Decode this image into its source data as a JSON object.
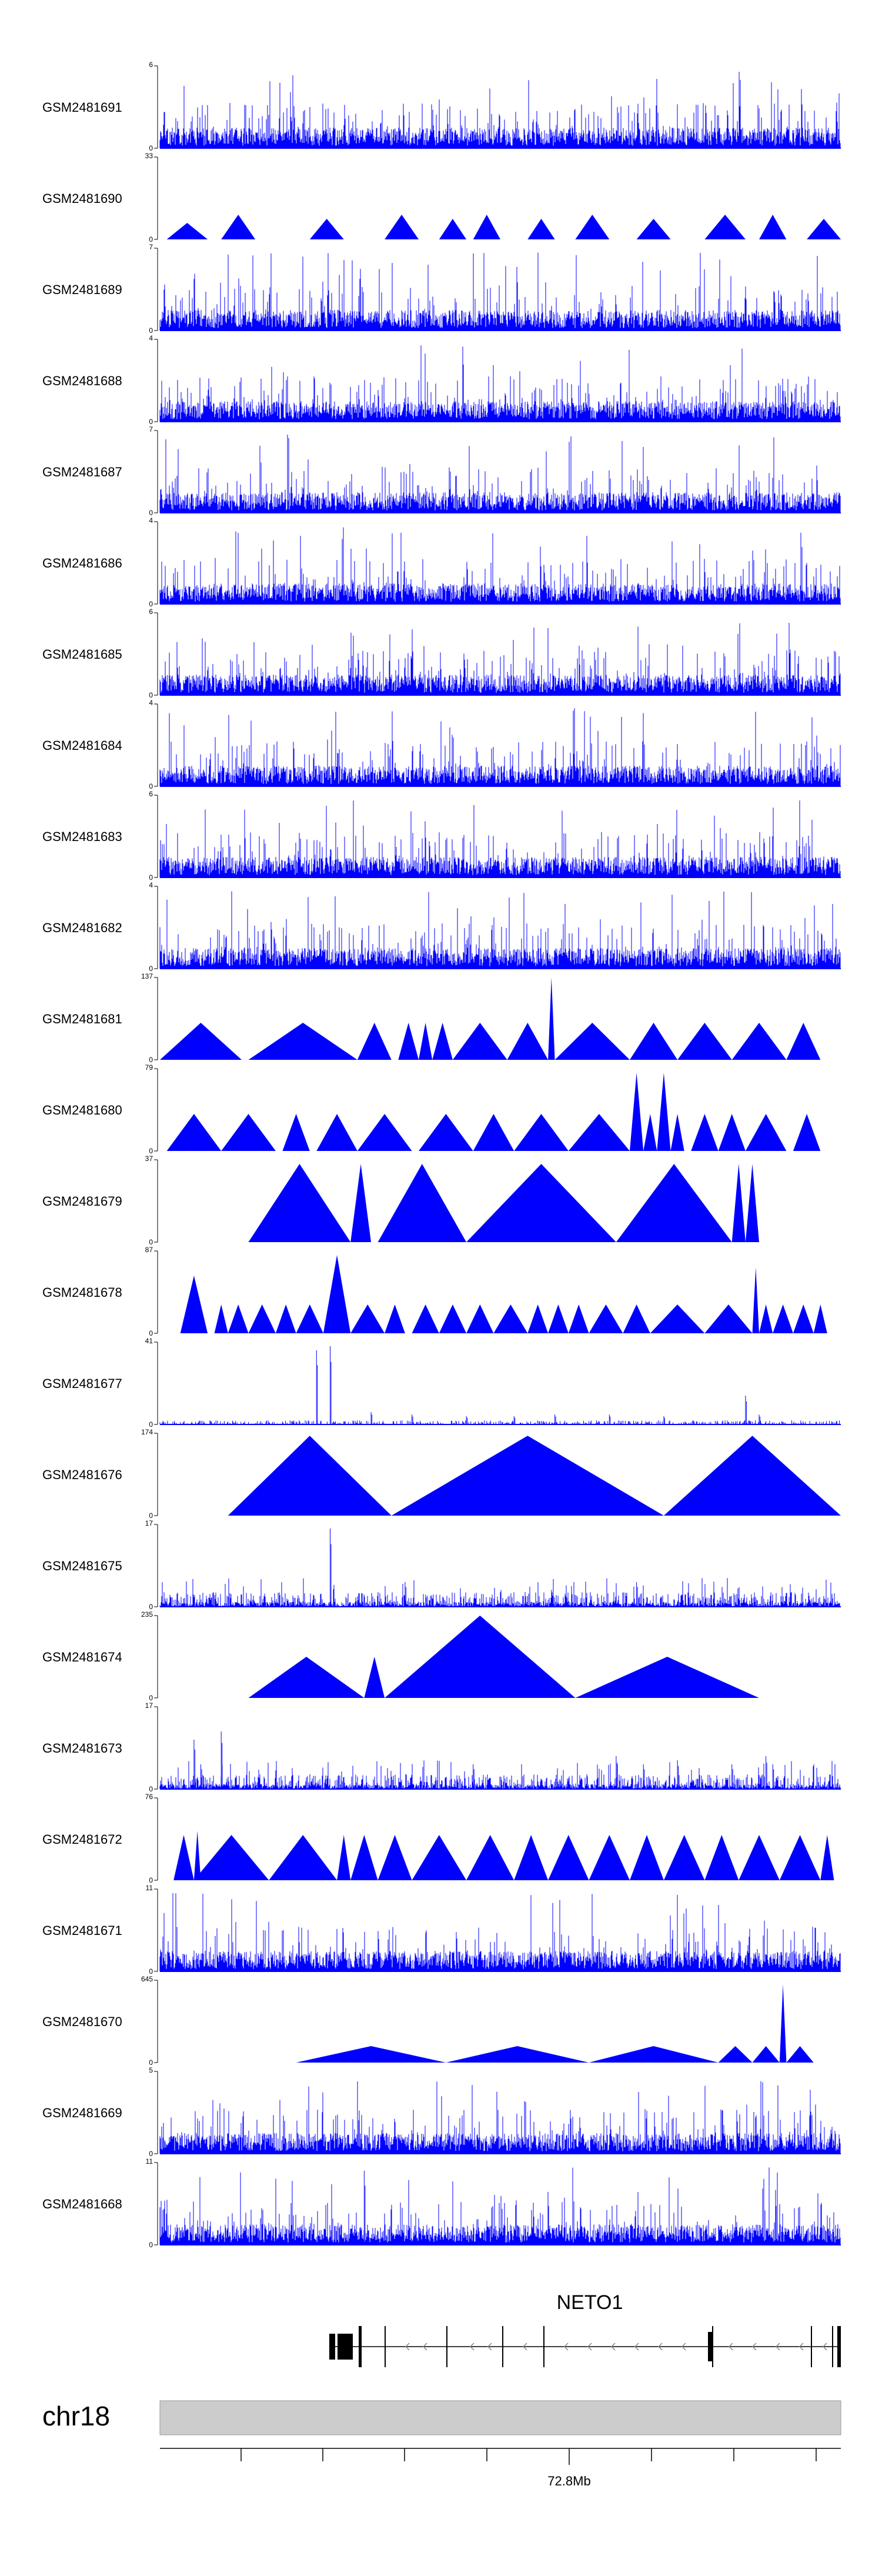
{
  "colors": {
    "signal": "#0000ff",
    "ideogram": "#cccccc",
    "gene": "#000000",
    "axis": "#000000"
  },
  "chart_data": {
    "type": "area",
    "genomic_region": {
      "chromosome": "chr18",
      "position_label": "72.8Mb",
      "gene": "NETO1"
    },
    "tracks": [
      {
        "name": "GSM2481691",
        "ymin": 0,
        "ymax": 6,
        "style": "dense"
      },
      {
        "name": "GSM2481690",
        "ymin": 0,
        "ymax": 33,
        "style": "triangles",
        "seed": 0.11,
        "triangles": [
          [
            1,
            7,
            0.2
          ],
          [
            9,
            14,
            0.3
          ],
          [
            22,
            27,
            0.25
          ],
          [
            33,
            38,
            0.3
          ],
          [
            41,
            45,
            0.25
          ],
          [
            46,
            50,
            0.3
          ],
          [
            54,
            58,
            0.25
          ],
          [
            61,
            66,
            0.3
          ],
          [
            70,
            75,
            0.25
          ],
          [
            80,
            86,
            0.3
          ],
          [
            88,
            92,
            0.3
          ],
          [
            95,
            100,
            0.25
          ]
        ]
      },
      {
        "name": "GSM2481689",
        "ymin": 0,
        "ymax": 7,
        "style": "dense"
      },
      {
        "name": "GSM2481688",
        "ymin": 0,
        "ymax": 4,
        "style": "dense"
      },
      {
        "name": "GSM2481687",
        "ymin": 0,
        "ymax": 7,
        "style": "dense"
      },
      {
        "name": "GSM2481686",
        "ymin": 0,
        "ymax": 4,
        "style": "dense"
      },
      {
        "name": "GSM2481685",
        "ymin": 0,
        "ymax": 6,
        "style": "dense"
      },
      {
        "name": "GSM2481684",
        "ymin": 0,
        "ymax": 4,
        "style": "dense"
      },
      {
        "name": "GSM2481683",
        "ymin": 0,
        "ymax": 6,
        "style": "dense"
      },
      {
        "name": "GSM2481682",
        "ymin": 0,
        "ymax": 4,
        "style": "dense"
      },
      {
        "name": "GSM2481681",
        "ymin": 0,
        "ymax": 137,
        "style": "triangles",
        "triangles": [
          [
            0,
            12,
            0.45
          ],
          [
            13,
            29,
            0.45
          ],
          [
            29,
            34,
            0.45
          ],
          [
            35,
            38,
            0.45
          ],
          [
            38,
            40,
            0.45
          ],
          [
            40,
            43,
            0.45
          ],
          [
            43,
            51,
            0.45
          ],
          [
            51,
            57,
            0.45
          ],
          [
            57,
            58,
            1.0
          ],
          [
            58,
            69,
            0.45
          ],
          [
            69,
            76,
            0.45
          ],
          [
            76,
            84,
            0.45
          ],
          [
            84,
            92,
            0.45
          ],
          [
            92,
            97,
            0.45
          ]
        ]
      },
      {
        "name": "GSM2481680",
        "ymin": 0,
        "ymax": 79,
        "style": "triangles",
        "triangles": [
          [
            1,
            9,
            0.45
          ],
          [
            9,
            17,
            0.45
          ],
          [
            18,
            22,
            0.45
          ],
          [
            23,
            29,
            0.45
          ],
          [
            29,
            37,
            0.45
          ],
          [
            38,
            46,
            0.45
          ],
          [
            46,
            52,
            0.45
          ],
          [
            52,
            60,
            0.45
          ],
          [
            60,
            69,
            0.45
          ],
          [
            69,
            71,
            0.95
          ],
          [
            71,
            73,
            0.45
          ],
          [
            73,
            75,
            0.95
          ],
          [
            75,
            77,
            0.45
          ],
          [
            78,
            82,
            0.45
          ],
          [
            82,
            86,
            0.45
          ],
          [
            86,
            92,
            0.45
          ],
          [
            93,
            97,
            0.45
          ]
        ]
      },
      {
        "name": "GSM2481679",
        "ymin": 0,
        "ymax": 37,
        "style": "triangles",
        "triangles": [
          [
            13,
            28,
            0.95
          ],
          [
            28,
            31,
            0.95
          ],
          [
            32,
            45,
            0.95
          ],
          [
            45,
            67,
            0.95
          ],
          [
            67,
            84,
            0.95
          ],
          [
            84,
            86,
            0.95
          ],
          [
            86,
            88,
            0.95
          ]
        ]
      },
      {
        "name": "GSM2481678",
        "ymin": 0,
        "ymax": 87,
        "style": "triangles",
        "triangles": [
          [
            3,
            7,
            0.7
          ],
          [
            8,
            10,
            0.35
          ],
          [
            10,
            13,
            0.35
          ],
          [
            13,
            17,
            0.35
          ],
          [
            17,
            20,
            0.35
          ],
          [
            20,
            24,
            0.35
          ],
          [
            24,
            28,
            0.95
          ],
          [
            28,
            33,
            0.35
          ],
          [
            33,
            36,
            0.35
          ],
          [
            37,
            41,
            0.35
          ],
          [
            41,
            45,
            0.35
          ],
          [
            45,
            49,
            0.35
          ],
          [
            49,
            54,
            0.35
          ],
          [
            54,
            57,
            0.35
          ],
          [
            57,
            60,
            0.35
          ],
          [
            60,
            63,
            0.35
          ],
          [
            63,
            68,
            0.35
          ],
          [
            68,
            72,
            0.35
          ],
          [
            72,
            80,
            0.35
          ],
          [
            80,
            87,
            0.35
          ],
          [
            87,
            88,
            0.8
          ],
          [
            88,
            90,
            0.35
          ],
          [
            90,
            93,
            0.35
          ],
          [
            93,
            96,
            0.35
          ],
          [
            96,
            98,
            0.35
          ]
        ]
      },
      {
        "name": "GSM2481677",
        "ymin": 0,
        "ymax": 41,
        "style": "sparse",
        "spikes": [
          [
            23,
            0.9
          ],
          [
            25,
            0.95
          ],
          [
            31,
            0.15
          ],
          [
            37,
            0.12
          ],
          [
            45,
            0.1
          ],
          [
            52,
            0.1
          ],
          [
            58,
            0.12
          ],
          [
            66,
            0.12
          ],
          [
            74,
            0.1
          ],
          [
            86,
            0.35
          ],
          [
            88,
            0.12
          ]
        ]
      },
      {
        "name": "GSM2481676",
        "ymin": 0,
        "ymax": 174,
        "style": "triangles",
        "triangles": [
          [
            10,
            34,
            0.97
          ],
          [
            34,
            74,
            0.97
          ],
          [
            74,
            100,
            0.97
          ]
        ]
      },
      {
        "name": "GSM2481675",
        "ymin": 0,
        "ymax": 17,
        "style": "spiky",
        "spikes": [
          [
            25,
            0.95
          ],
          [
            36,
            0.3
          ],
          [
            70,
            0.3
          ]
        ]
      },
      {
        "name": "GSM2481674",
        "ymin": 0,
        "ymax": 235,
        "style": "triangles",
        "triangles": [
          [
            13,
            30,
            0.5
          ],
          [
            30,
            33,
            0.5
          ],
          [
            33,
            61,
            1.0
          ],
          [
            61,
            88,
            0.5
          ]
        ]
      },
      {
        "name": "GSM2481673",
        "ymin": 0,
        "ymax": 17,
        "style": "spiky",
        "spikes": [
          [
            5,
            0.6
          ],
          [
            6,
            0.3
          ],
          [
            9,
            0.7
          ],
          [
            46,
            0.3
          ],
          [
            67,
            0.4
          ],
          [
            71,
            0.3
          ],
          [
            76,
            0.35
          ],
          [
            84,
            0.3
          ],
          [
            89,
            0.4
          ],
          [
            90,
            0.3
          ]
        ]
      },
      {
        "name": "GSM2481672",
        "ymin": 0,
        "ymax": 76,
        "style": "triangles",
        "triangles": [
          [
            2,
            5,
            0.55
          ],
          [
            5,
            16,
            0.55
          ],
          [
            16,
            26,
            0.55
          ],
          [
            26,
            28,
            0.55
          ],
          [
            28,
            32,
            0.55
          ],
          [
            32,
            37,
            0.55
          ],
          [
            37,
            45,
            0.55
          ],
          [
            45,
            52,
            0.55
          ],
          [
            52,
            57,
            0.55
          ],
          [
            57,
            63,
            0.55
          ],
          [
            63,
            69,
            0.55
          ],
          [
            69,
            74,
            0.55
          ],
          [
            74,
            80,
            0.55
          ],
          [
            80,
            85,
            0.55
          ],
          [
            85,
            91,
            0.55
          ],
          [
            91,
            97,
            0.55
          ],
          [
            97,
            99,
            0.55
          ],
          [
            5,
            6,
            0.6
          ]
        ]
      },
      {
        "name": "GSM2481671",
        "ymin": 0,
        "ymax": 11,
        "style": "dense"
      },
      {
        "name": "GSM2481670",
        "ymin": 0,
        "ymax": 645,
        "style": "triangles",
        "triangles": [
          [
            20,
            42,
            0.2
          ],
          [
            42,
            63,
            0.2
          ],
          [
            63,
            82,
            0.2
          ],
          [
            82,
            87,
            0.2
          ],
          [
            87,
            91,
            0.2
          ],
          [
            91,
            92,
            0.95
          ],
          [
            92,
            96,
            0.2
          ]
        ]
      },
      {
        "name": "GSM2481669",
        "ymin": 0,
        "ymax": 5,
        "style": "dense"
      },
      {
        "name": "GSM2481668",
        "ymin": 0,
        "ymax": 11,
        "style": "dense",
        "spikes": [
          [
            30,
            0.9
          ]
        ]
      }
    ]
  }
}
